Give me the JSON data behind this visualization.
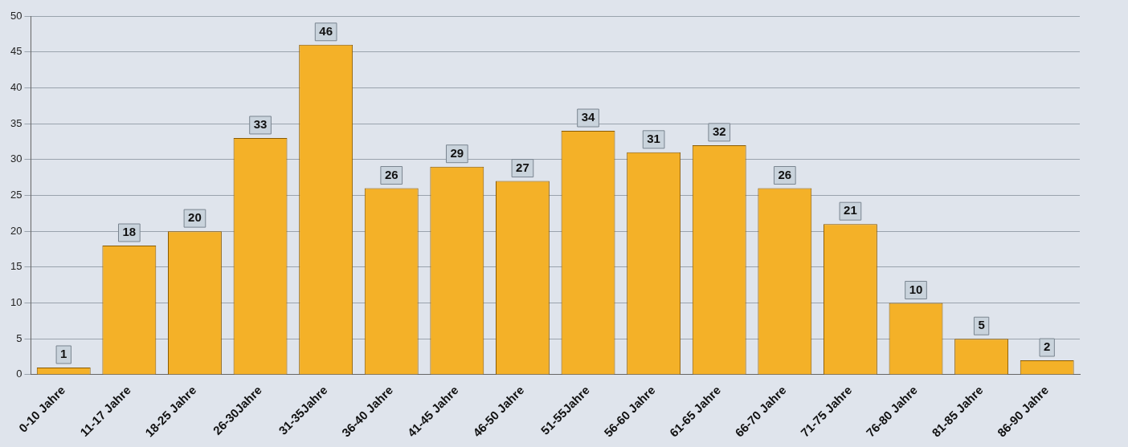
{
  "chart_data": {
    "type": "bar",
    "categories": [
      "0-10 Jahre",
      "11-17 Jahre",
      "18-25 Jahre",
      "26-30Jahre",
      "31-35Jahre",
      "36-40 Jahre",
      "41-45 Jahre",
      "46-50 Jahre",
      "51-55Jahre",
      "56-60 Jahre",
      "61-65 Jahre",
      "66-70 Jahre",
      "71-75 Jahre",
      "76-80 Jahre",
      "81-85 Jahre",
      "86-90 Jahre"
    ],
    "values": [
      1,
      18,
      20,
      33,
      46,
      26,
      29,
      27,
      34,
      31,
      32,
      26,
      21,
      10,
      5,
      2
    ],
    "color": "#f4b128",
    "ylim": [
      0,
      50
    ],
    "yticks": [
      0,
      5,
      10,
      15,
      20,
      25,
      30,
      35,
      40,
      45,
      50
    ],
    "grid": "y",
    "legend": false,
    "data_labels": true
  }
}
